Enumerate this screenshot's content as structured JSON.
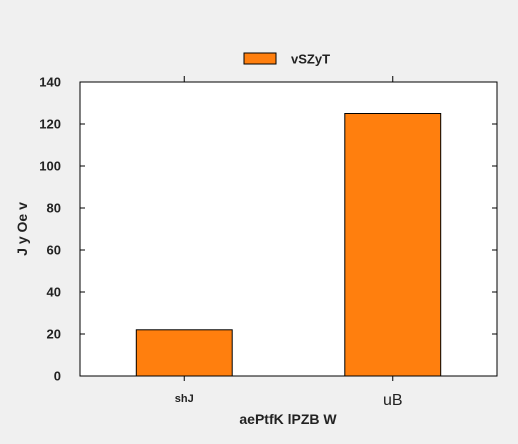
{
  "chart_data": {
    "type": "bar",
    "categories": [
      "shJ",
      "uB"
    ],
    "series": [
      {
        "name": "vSZyT",
        "values": [
          22,
          125
        ],
        "color": "#ff7f0e"
      }
    ],
    "title": "",
    "xlabel": "aePtfK lPZB W",
    "ylabel": "J y Oe  v",
    "ylim": [
      0,
      140
    ],
    "yticks": [
      0,
      20,
      40,
      60,
      80,
      100,
      120,
      140
    ],
    "grid": false,
    "legend_position": "top-center",
    "colors": {
      "bar_fill": "#ff7f0e",
      "bar_edge": "#000000",
      "plot_background": "#ffffff",
      "figure_background": "#f0f0f0"
    }
  }
}
